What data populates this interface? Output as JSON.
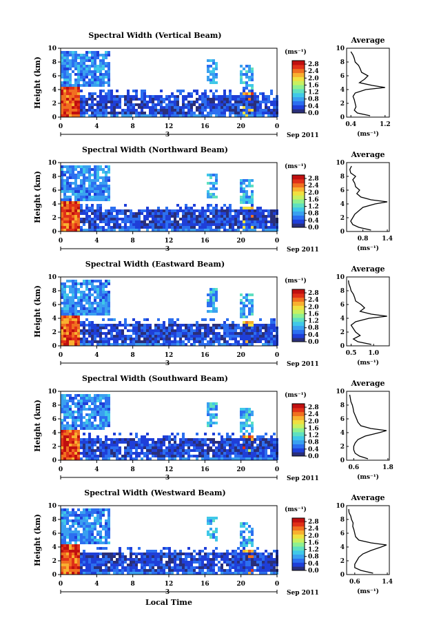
{
  "figure": {
    "shared_xlabel": "Local Time",
    "date_label": "Sep 2011",
    "date_day": "3",
    "cbar_unit": "(ms⁻¹)",
    "avg_title": "Average",
    "avg_xlabel": "(ms⁻¹)",
    "colorscale": [
      "#2a2f7a",
      "#1f3fd8",
      "#2c6ff0",
      "#3aa0f0",
      "#40c8e8",
      "#5fe0c0",
      "#8ef090",
      "#c8f060",
      "#f0e040",
      "#f8b030",
      "#f07020",
      "#e03018",
      "#c01010"
    ]
  },
  "chart_data": [
    {
      "type": "heatmap",
      "title": "Spectral Width (Vertical Beam)",
      "ylabel": "Height (km)",
      "x_ticks": [
        "0",
        "4",
        "8",
        "12",
        "16",
        "20",
        "0"
      ],
      "xlim": [
        0,
        24
      ],
      "y_ticks": [
        "0",
        "2",
        "4",
        "6",
        "8",
        "10"
      ],
      "ylim": [
        0,
        10
      ],
      "colorbar": {
        "ticks": [
          "0.0",
          "0.4",
          "0.8",
          "1.2",
          "1.6",
          "2.0",
          "2.4",
          "2.8"
        ],
        "range": [
          0,
          3.0
        ]
      },
      "average_profile": {
        "x_ticks": [
          "0.4",
          "1.2"
        ],
        "xlim": [
          0.3,
          1.3
        ],
        "height": [
          0.2,
          0.6,
          1.0,
          1.5,
          2.0,
          2.5,
          3.0,
          3.5,
          4.0,
          4.3,
          4.6,
          5.0,
          5.5,
          6.0,
          6.5,
          7.0,
          7.5,
          8.0,
          8.5,
          9.0,
          9.5
        ],
        "value": [
          0.85,
          0.55,
          0.48,
          0.52,
          0.5,
          0.48,
          0.45,
          0.5,
          0.75,
          1.2,
          0.9,
          0.6,
          0.72,
          0.8,
          0.65,
          0.62,
          0.58,
          0.5,
          0.48,
          0.45,
          0.4
        ]
      }
    },
    {
      "type": "heatmap",
      "title": "Spectral Width (Northward Beam)",
      "ylabel": "Height (km)",
      "x_ticks": [
        "0",
        "4",
        "8",
        "12",
        "16",
        "20",
        "0"
      ],
      "xlim": [
        0,
        24
      ],
      "y_ticks": [
        "0",
        "2",
        "4",
        "6",
        "8",
        "10"
      ],
      "ylim": [
        0,
        10
      ],
      "colorbar": {
        "ticks": [
          "0.0",
          "0.4",
          "0.8",
          "1.2",
          "1.6",
          "2.0",
          "2.4",
          "2.8"
        ],
        "range": [
          0,
          3.0
        ]
      },
      "average_profile": {
        "x_ticks": [
          "0.8",
          "1.4"
        ],
        "xlim": [
          0.4,
          1.45
        ],
        "height": [
          0.2,
          0.6,
          1.0,
          1.5,
          2.0,
          2.5,
          3.0,
          3.5,
          4.0,
          4.3,
          4.6,
          5.0,
          5.5,
          6.0,
          6.5,
          7.0,
          7.5,
          8.0,
          8.5,
          9.0,
          9.5
        ],
        "value": [
          1.0,
          0.7,
          0.55,
          0.5,
          0.55,
          0.6,
          0.7,
          0.8,
          1.1,
          1.4,
          1.0,
          0.75,
          0.65,
          0.72,
          0.62,
          0.6,
          0.55,
          0.62,
          0.5,
          0.48,
          0.52
        ]
      }
    },
    {
      "type": "heatmap",
      "title": "Spectral Width (Eastward Beam)",
      "ylabel": "Height (km)",
      "x_ticks": [
        "0",
        "4",
        "8",
        "12",
        "16",
        "20",
        "0"
      ],
      "xlim": [
        0,
        24
      ],
      "y_ticks": [
        "0",
        "2",
        "4",
        "6",
        "8",
        "10"
      ],
      "ylim": [
        0,
        10
      ],
      "colorbar": {
        "ticks": [
          "0.0",
          "0.4",
          "0.8",
          "1.2",
          "1.6",
          "2.0",
          "2.4",
          "2.8"
        ],
        "range": [
          0,
          3.0
        ]
      },
      "average_profile": {
        "x_ticks": [
          "0.5",
          "1.0"
        ],
        "xlim": [
          0.4,
          1.35
        ],
        "height": [
          0.2,
          0.6,
          1.0,
          1.5,
          2.0,
          2.5,
          3.0,
          3.5,
          4.0,
          4.3,
          4.6,
          5.0,
          5.5,
          6.0,
          6.5,
          7.0,
          7.5,
          8.0,
          8.5,
          9.0,
          9.5
        ],
        "value": [
          0.95,
          0.65,
          0.55,
          0.7,
          0.6,
          0.55,
          0.5,
          0.6,
          0.9,
          1.3,
          0.95,
          0.7,
          0.8,
          0.72,
          0.6,
          0.58,
          0.55,
          0.5,
          0.48,
          0.45,
          0.44
        ]
      }
    },
    {
      "type": "heatmap",
      "title": "Spectral Width (Southward Beam)",
      "ylabel": "Height (km)",
      "x_ticks": [
        "0",
        "4",
        "8",
        "12",
        "16",
        "20",
        "0"
      ],
      "xlim": [
        0,
        24
      ],
      "y_ticks": [
        "0",
        "2",
        "4",
        "6",
        "8",
        "10"
      ],
      "ylim": [
        0,
        10
      ],
      "colorbar": {
        "ticks": [
          "0.0",
          "0.4",
          "0.8",
          "1.2",
          "1.6",
          "2.0",
          "2.4",
          "2.8"
        ],
        "range": [
          0,
          3.0
        ]
      },
      "average_profile": {
        "x_ticks": [
          "0.6",
          "1.8"
        ],
        "xlim": [
          0.35,
          1.85
        ],
        "height": [
          0.2,
          0.6,
          1.0,
          1.5,
          2.0,
          2.5,
          3.0,
          3.5,
          4.0,
          4.3,
          4.6,
          5.0,
          5.5,
          6.0,
          6.5,
          7.0,
          7.5,
          8.0,
          8.5,
          9.0,
          9.5
        ],
        "value": [
          1.1,
          0.8,
          0.65,
          0.6,
          0.6,
          0.65,
          0.75,
          1.0,
          1.5,
          1.75,
          1.2,
          0.85,
          0.75,
          0.7,
          0.65,
          0.6,
          0.58,
          0.55,
          0.5,
          0.48,
          0.46
        ]
      }
    },
    {
      "type": "heatmap",
      "title": "Spectral Width (Westward Beam)",
      "ylabel": "Height (km)",
      "x_ticks": [
        "0",
        "4",
        "8",
        "12",
        "16",
        "20",
        "0"
      ],
      "xlim": [
        0,
        24
      ],
      "y_ticks": [
        "0",
        "2",
        "4",
        "6",
        "8",
        "10"
      ],
      "ylim": [
        0,
        10
      ],
      "colorbar": {
        "ticks": [
          "0.0",
          "0.4",
          "0.8",
          "1.2",
          "1.6",
          "2.0",
          "2.4",
          "2.8"
        ],
        "range": [
          0,
          3.0
        ]
      },
      "average_profile": {
        "x_ticks": [
          "0.6",
          "1.4"
        ],
        "xlim": [
          0.4,
          1.45
        ],
        "height": [
          0.2,
          0.6,
          1.0,
          1.5,
          2.0,
          2.5,
          3.0,
          3.5,
          4.0,
          4.3,
          4.6,
          5.0,
          5.5,
          6.0,
          6.5,
          7.0,
          7.5,
          8.0,
          8.5,
          9.0,
          9.5
        ],
        "value": [
          1.05,
          0.75,
          0.6,
          0.6,
          0.65,
          0.7,
          0.8,
          1.0,
          1.25,
          1.38,
          1.0,
          0.7,
          0.62,
          0.6,
          0.58,
          0.55,
          0.56,
          0.52,
          0.5,
          0.46,
          0.45
        ]
      }
    }
  ]
}
